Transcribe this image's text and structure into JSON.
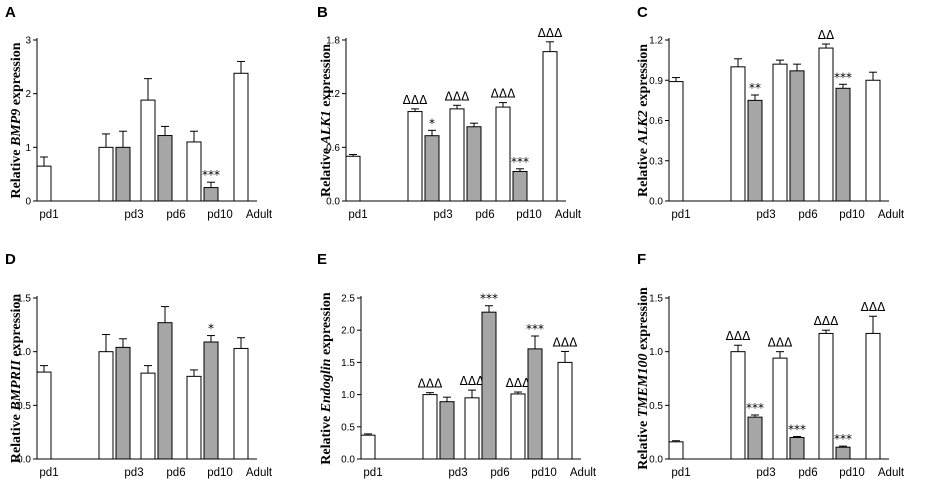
{
  "figure": {
    "background": "#ffffff",
    "bar_colors": {
      "white": "#ffffff",
      "grey": "#a6a6a6"
    }
  },
  "chart_data": [
    {
      "panel": "A",
      "type": "bar",
      "title": "",
      "ylabel_prefix": "Relative",
      "ylabel_gene": "BMP9",
      "ylabel_suffix": "expression",
      "xlabel": "",
      "categories": [
        "pd1",
        "pd3",
        "pd6",
        "pd10",
        "Adult"
      ],
      "ylim": [
        0,
        3
      ],
      "yticks": [
        0,
        1,
        2,
        3
      ],
      "yticklabels": [
        "0",
        "1",
        "2",
        "3"
      ],
      "series": [
        {
          "name": "white",
          "values": [
            0.65,
            1.0,
            1.88,
            1.1,
            2.38
          ],
          "errors": [
            0.17,
            0.25,
            0.4,
            0.2,
            0.22
          ]
        },
        {
          "name": "grey",
          "values": [
            null,
            1.0,
            1.22,
            0.25,
            null
          ],
          "errors": [
            null,
            0.3,
            0.17,
            0.1,
            null
          ]
        }
      ],
      "annotations": [
        {
          "category": "pd10",
          "series": "grey",
          "text": "***"
        }
      ]
    },
    {
      "panel": "B",
      "type": "bar",
      "title": "",
      "ylabel_prefix": "Relative",
      "ylabel_gene": "ALK1",
      "ylabel_suffix": "expression",
      "xlabel": "",
      "categories": [
        "pd1",
        "pd3",
        "pd6",
        "pd10",
        "Adult"
      ],
      "ylim": [
        0,
        1.8
      ],
      "yticks": [
        0,
        0.6,
        1.2,
        1.8
      ],
      "yticklabels": [
        "0.0",
        "0.6",
        "1.2",
        "1.8"
      ],
      "series": [
        {
          "name": "white",
          "values": [
            0.5,
            1.0,
            1.03,
            1.05,
            1.67
          ],
          "errors": [
            0.02,
            0.03,
            0.04,
            0.05,
            0.11
          ]
        },
        {
          "name": "grey",
          "values": [
            null,
            0.73,
            0.83,
            0.33,
            null
          ],
          "errors": [
            null,
            0.06,
            0.04,
            0.03,
            null
          ]
        }
      ],
      "annotations": [
        {
          "category": "pd3",
          "series": "white",
          "text": "ΔΔΔ"
        },
        {
          "category": "pd3",
          "series": "grey",
          "text": "*"
        },
        {
          "category": "pd6",
          "series": "white",
          "text": "ΔΔΔ"
        },
        {
          "category": "pd10",
          "series": "white",
          "text": "ΔΔΔ"
        },
        {
          "category": "pd10",
          "series": "grey",
          "text": "***"
        },
        {
          "category": "Adult",
          "series": "white",
          "text": "ΔΔΔ"
        }
      ]
    },
    {
      "panel": "C",
      "type": "bar",
      "title": "",
      "ylabel_prefix": "Relative",
      "ylabel_gene": "ALK2",
      "ylabel_suffix": "expression",
      "xlabel": "",
      "categories": [
        "pd1",
        "pd3",
        "pd6",
        "pd10",
        "Adult"
      ],
      "ylim": [
        0,
        1.2
      ],
      "yticks": [
        0,
        0.3,
        0.6,
        0.9,
        1.2
      ],
      "yticklabels": [
        "0.0",
        "0.3",
        "0.6",
        "0.9",
        "1.2"
      ],
      "series": [
        {
          "name": "white",
          "values": [
            0.89,
            1.0,
            1.02,
            1.14,
            0.9
          ],
          "errors": [
            0.03,
            0.06,
            0.03,
            0.03,
            0.06
          ]
        },
        {
          "name": "grey",
          "values": [
            null,
            0.75,
            0.97,
            0.84,
            null
          ],
          "errors": [
            null,
            0.04,
            0.05,
            0.03,
            null
          ]
        }
      ],
      "annotations": [
        {
          "category": "pd3",
          "series": "grey",
          "text": "**"
        },
        {
          "category": "pd10",
          "series": "white",
          "text": "ΔΔ"
        },
        {
          "category": "pd10",
          "series": "grey",
          "text": "***"
        }
      ]
    },
    {
      "panel": "D",
      "type": "bar",
      "title": "",
      "ylabel_prefix": "Relative",
      "ylabel_gene": "BMPRII",
      "ylabel_suffix": "expression",
      "xlabel": "",
      "categories": [
        "pd1",
        "pd3",
        "pd6",
        "pd10",
        "Adult"
      ],
      "ylim": [
        0,
        1.5
      ],
      "yticks": [
        0,
        0.5,
        1.0,
        1.5
      ],
      "yticklabels": [
        "0.0",
        "0.5",
        "1.0",
        "1.5"
      ],
      "series": [
        {
          "name": "white",
          "values": [
            0.81,
            1.0,
            0.8,
            0.77,
            1.03
          ],
          "errors": [
            0.06,
            0.16,
            0.07,
            0.06,
            0.1
          ]
        },
        {
          "name": "grey",
          "values": [
            null,
            1.04,
            1.27,
            1.09,
            null
          ],
          "errors": [
            null,
            0.08,
            0.15,
            0.06,
            null
          ]
        }
      ],
      "annotations": [
        {
          "category": "pd10",
          "series": "grey",
          "text": "*"
        }
      ]
    },
    {
      "panel": "E",
      "type": "bar",
      "title": "",
      "ylabel_prefix": "Relative",
      "ylabel_gene": "Endoglin",
      "ylabel_suffix": "expression",
      "xlabel": "",
      "categories": [
        "pd1",
        "pd3",
        "pd6",
        "pd10",
        "Adult"
      ],
      "ylim": [
        0,
        2.5
      ],
      "yticks": [
        0,
        0.5,
        1.0,
        1.5,
        2.0,
        2.5
      ],
      "yticklabels": [
        "0.0",
        "0.5",
        "1.0",
        "1.5",
        "2.0",
        "2.5"
      ],
      "series": [
        {
          "name": "white",
          "values": [
            0.37,
            1.0,
            0.95,
            1.01,
            1.5
          ],
          "errors": [
            0.02,
            0.03,
            0.12,
            0.03,
            0.17
          ]
        },
        {
          "name": "grey",
          "values": [
            null,
            0.89,
            2.28,
            1.71,
            null
          ],
          "errors": [
            null,
            0.07,
            0.1,
            0.2,
            null
          ]
        }
      ],
      "annotations": [
        {
          "category": "pd3",
          "series": "white",
          "text": "ΔΔΔ"
        },
        {
          "category": "pd6",
          "series": "white",
          "text": "ΔΔΔ"
        },
        {
          "category": "pd6",
          "series": "grey",
          "text": "***"
        },
        {
          "category": "pd10",
          "series": "white",
          "text": "ΔΔΔ"
        },
        {
          "category": "pd10",
          "series": "grey",
          "text": "***"
        },
        {
          "category": "Adult",
          "series": "white",
          "text": "ΔΔΔ"
        }
      ]
    },
    {
      "panel": "F",
      "type": "bar",
      "title": "",
      "ylabel_prefix": "Relative",
      "ylabel_gene": "TMEM100",
      "ylabel_suffix": "expression",
      "xlabel": "",
      "categories": [
        "pd1",
        "pd3",
        "pd6",
        "pd10",
        "Adult"
      ],
      "ylim": [
        0,
        1.5
      ],
      "yticks": [
        0,
        0.5,
        1.0,
        1.5
      ],
      "yticklabels": [
        "0.0",
        "0.5",
        "1.0",
        "1.5"
      ],
      "series": [
        {
          "name": "white",
          "values": [
            0.16,
            1.0,
            0.94,
            1.17,
            1.17
          ],
          "errors": [
            0.01,
            0.06,
            0.06,
            0.03,
            0.16
          ]
        },
        {
          "name": "grey",
          "values": [
            null,
            0.39,
            0.2,
            0.11,
            null
          ],
          "errors": [
            null,
            0.02,
            0.01,
            0.01,
            null
          ]
        }
      ],
      "annotations": [
        {
          "category": "pd3",
          "series": "white",
          "text": "ΔΔΔ"
        },
        {
          "category": "pd3",
          "series": "grey",
          "text": "***"
        },
        {
          "category": "pd6",
          "series": "white",
          "text": "ΔΔΔ"
        },
        {
          "category": "pd6",
          "series": "grey",
          "text": "***"
        },
        {
          "category": "pd10",
          "series": "white",
          "text": "ΔΔΔ"
        },
        {
          "category": "pd10",
          "series": "grey",
          "text": "***"
        },
        {
          "category": "Adult",
          "series": "white",
          "text": "ΔΔΔ"
        }
      ]
    }
  ]
}
